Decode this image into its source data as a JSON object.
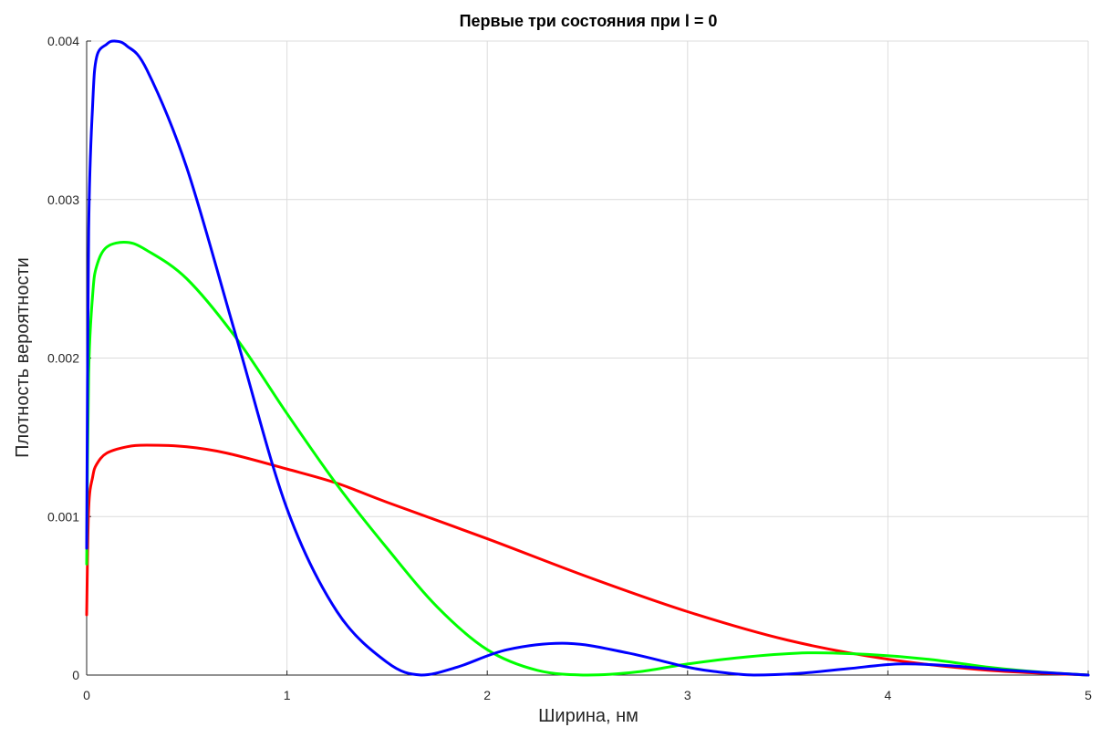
{
  "chart_data": {
    "type": "line",
    "title": "Первые три состояния при l = 0",
    "xlabel": "Ширина, нм",
    "ylabel": "Плотность вероятности",
    "xlim": [
      0,
      5
    ],
    "ylim": [
      0,
      0.004
    ],
    "grid": true,
    "x_ticks": [
      {
        "value": 0,
        "label": "0"
      },
      {
        "value": 1,
        "label": "1"
      },
      {
        "value": 2,
        "label": "2"
      },
      {
        "value": 3,
        "label": "3"
      },
      {
        "value": 4,
        "label": "4"
      },
      {
        "value": 5,
        "label": "5"
      }
    ],
    "y_ticks": [
      {
        "value": 0,
        "label": "0"
      },
      {
        "value": 0.001,
        "label": "0.001"
      },
      {
        "value": 0.002,
        "label": "0.002"
      },
      {
        "value": 0.003,
        "label": "0.003"
      },
      {
        "value": 0.004,
        "label": "0.004"
      }
    ],
    "series": [
      {
        "color": "#ff0000",
        "x": [
          0,
          0.01,
          0.03,
          0.05,
          0.1,
          0.2,
          0.3,
          0.5,
          0.7,
          1.0,
          1.25,
          1.5,
          2.0,
          2.5,
          3.0,
          3.5,
          4.0,
          4.5,
          5.0
        ],
        "y": [
          0.00038,
          0.00105,
          0.00125,
          0.00133,
          0.0014,
          0.00144,
          0.00145,
          0.00144,
          0.0014,
          0.0013,
          0.00121,
          0.00109,
          0.00086,
          0.00062,
          0.0004,
          0.00022,
          0.0001,
          3e-05,
          0.0
        ]
      },
      {
        "color": "#00ff00",
        "x": [
          0,
          0.01,
          0.03,
          0.05,
          0.1,
          0.2,
          0.3,
          0.5,
          0.75,
          1.0,
          1.25,
          1.5,
          1.75,
          2.0,
          2.25,
          2.5,
          2.75,
          3.0,
          3.3,
          3.6,
          3.9,
          4.2,
          4.5,
          4.75,
          5.0
        ],
        "y": [
          0.0007,
          0.0019,
          0.0024,
          0.00258,
          0.0027,
          0.00273,
          0.00268,
          0.0025,
          0.00212,
          0.00165,
          0.0012,
          0.0008,
          0.00043,
          0.00016,
          3e-05,
          0.0,
          2e-05,
          7e-05,
          0.000115,
          0.00014,
          0.00013,
          0.0001,
          5e-05,
          2e-05,
          0.0
        ]
      },
      {
        "color": "#0000ff",
        "x": [
          0,
          0.01,
          0.03,
          0.05,
          0.1,
          0.14,
          0.2,
          0.3,
          0.5,
          0.75,
          1.0,
          1.25,
          1.5,
          1.67,
          1.85,
          2.1,
          2.4,
          2.7,
          3.0,
          3.15,
          3.33,
          3.55,
          3.8,
          4.05,
          4.3,
          4.6,
          5.0
        ],
        "y": [
          0.0008,
          0.0028,
          0.0036,
          0.0039,
          0.00398,
          0.004,
          0.00397,
          0.00382,
          0.0032,
          0.00212,
          0.00105,
          0.0004,
          8e-05,
          0.0,
          5e-05,
          0.00016,
          0.0002,
          0.00014,
          5e-05,
          2e-05,
          0.0,
          1e-05,
          4e-05,
          7e-05,
          6e-05,
          3e-05,
          0.0
        ]
      }
    ]
  }
}
